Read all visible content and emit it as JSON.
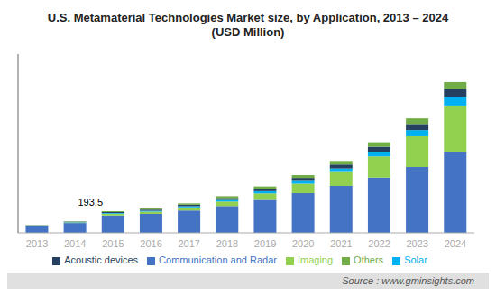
{
  "chart_data": {
    "type": "bar",
    "title": "U.S. Metamaterial Technologies Market size, by Application, 2013 – 2024\n(USD Million)",
    "categories": [
      "2013",
      "2014",
      "2015",
      "2016",
      "2017",
      "2018",
      "2019",
      "2020",
      "2021",
      "2022",
      "2023",
      "2024"
    ],
    "series": [
      {
        "name": "Communication and Radar",
        "color": "#4472C4",
        "values": [
          60,
          88,
          155,
          170,
          200,
          240,
          295,
          355,
          420,
          495,
          590,
          720
        ]
      },
      {
        "name": "Imaging",
        "color": "#92D050",
        "values": [
          3,
          5,
          16,
          20,
          28,
          40,
          58,
          85,
          125,
          190,
          275,
          420
        ]
      },
      {
        "name": "Solar",
        "color": "#00B0F0",
        "values": [
          2,
          3,
          7,
          8,
          11,
          15,
          20,
          25,
          32,
          42,
          55,
          75
        ]
      },
      {
        "name": "Acoustic devices",
        "color": "#243F60",
        "values": [
          2,
          4,
          8,
          10,
          13,
          17,
          22,
          27,
          35,
          44,
          55,
          70
        ]
      },
      {
        "name": "Others",
        "color": "#70AD47",
        "values": [
          2,
          3,
          8,
          10,
          12,
          16,
          20,
          25,
          32,
          40,
          50,
          65
        ]
      }
    ],
    "stacked": true,
    "ylim": [
      0,
      1600
    ],
    "grid": false,
    "legend": "bottom",
    "tick_labels": "x",
    "annotations": [
      {
        "text": "193.5",
        "x": "2015"
      },
      {
        "text": "Source : www.gminsights.com"
      }
    ]
  }
}
